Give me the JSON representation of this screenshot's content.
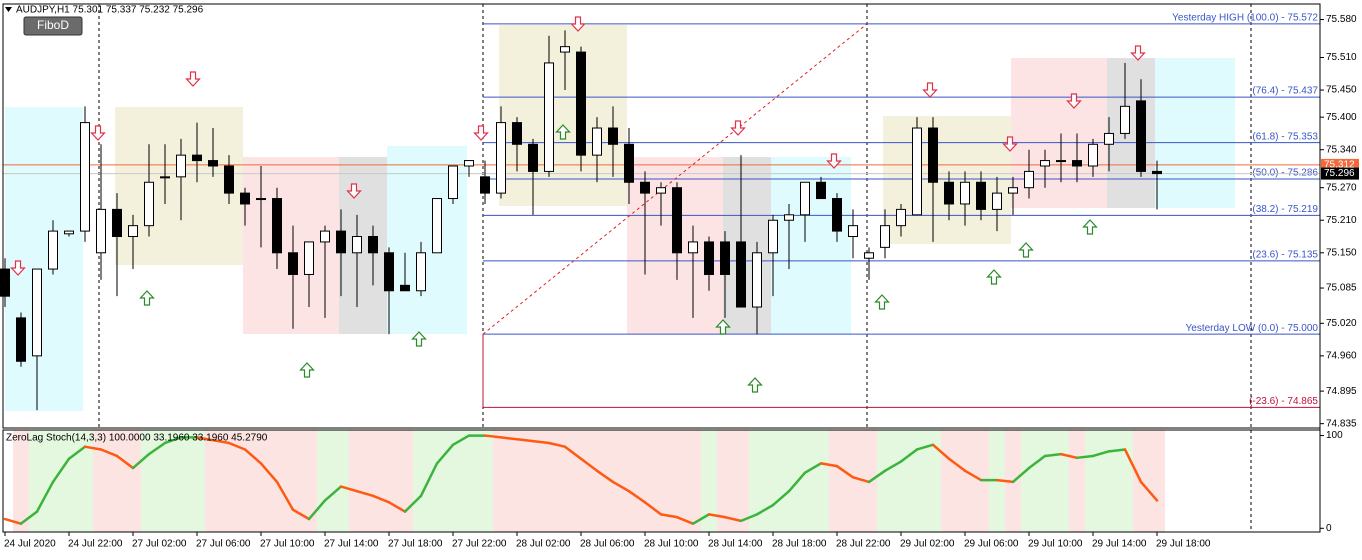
{
  "chart_data": [
    {
      "type": "candlestick",
      "title": "AUDJPY,H1  75.301 75.337 75.232 75.296",
      "button": "FiboD",
      "categories": [
        "24 Jul 2020",
        null,
        null,
        null,
        "24 Jul 22:00",
        null,
        null,
        null,
        "27 Jul 02:00",
        null,
        null,
        null,
        "27 Jul 06:00",
        null,
        null,
        null,
        "27 Jul 10:00",
        null,
        null,
        null,
        "27 Jul 14:00",
        null,
        null,
        null,
        "27 Jul 18:00",
        null,
        null,
        null,
        "27 Jul 22:00",
        null,
        null,
        null,
        "28 Jul 02:00",
        null,
        null,
        null,
        "28 Jul 06:00",
        null,
        null,
        null,
        "28 Jul 10:00",
        null,
        null,
        null,
        "28 Jul 14:00",
        null,
        null,
        null,
        "28 Jul 18:00",
        null,
        null,
        null,
        "28 Jul 22:00",
        null,
        null,
        null,
        "29 Jul 02:00",
        null,
        null,
        null,
        "29 Jul 06:00",
        null,
        null,
        null,
        "29 Jul 10:00",
        null,
        null,
        null,
        "29 Jul 14:00",
        null,
        null,
        null,
        "29 Jul 18:00"
      ],
      "open": [
        75.12,
        75.03,
        74.96,
        75.12,
        75.185,
        75.19,
        75.15,
        75.23,
        75.18,
        75.2,
        75.29,
        75.29,
        75.33,
        75.32,
        75.31,
        75.26,
        75.25,
        75.25,
        75.15,
        75.11,
        75.17,
        75.19,
        75.15,
        75.18,
        75.15,
        75.09,
        75.08,
        75.15,
        75.25,
        75.31,
        75.29,
        75.26,
        75.39,
        75.35,
        75.3,
        75.52,
        75.52,
        75.33,
        75.38,
        75.35,
        75.28,
        75.26,
        75.27,
        75.15,
        75.17,
        75.17,
        75.17,
        75.05,
        75.15,
        75.21,
        75.22,
        75.28,
        75.25,
        75.18,
        75.14,
        75.16,
        75.2,
        75.22,
        75.38,
        75.28,
        75.24,
        75.28,
        75.23,
        75.26,
        75.27,
        75.31,
        75.32,
        75.32,
        75.31,
        75.35,
        75.37,
        75.43,
        75.3
      ],
      "high": [
        75.14,
        75.04,
        75.12,
        75.21,
        75.19,
        75.42,
        75.35,
        75.26,
        75.22,
        75.35,
        75.35,
        75.36,
        75.39,
        75.38,
        75.33,
        75.27,
        75.31,
        75.27,
        75.2,
        75.17,
        75.2,
        75.23,
        75.22,
        75.2,
        75.16,
        75.15,
        75.17,
        75.25,
        75.31,
        75.32,
        75.32,
        75.42,
        75.4,
        75.36,
        75.55,
        75.56,
        75.53,
        75.4,
        75.42,
        75.38,
        75.3,
        75.28,
        75.28,
        75.2,
        75.18,
        75.19,
        75.33,
        75.17,
        75.22,
        75.24,
        75.28,
        75.29,
        75.26,
        75.23,
        75.16,
        75.23,
        75.24,
        75.4,
        75.4,
        75.3,
        75.3,
        75.3,
        75.29,
        75.29,
        75.34,
        75.34,
        75.37,
        75.37,
        75.36,
        75.4,
        75.5,
        75.47,
        75.32
      ],
      "low": [
        75.05,
        74.94,
        74.86,
        75.11,
        75.18,
        75.17,
        75.1,
        75.07,
        75.12,
        75.18,
        75.24,
        75.21,
        75.28,
        75.29,
        75.24,
        75.2,
        75.16,
        75.12,
        75.01,
        75.05,
        75.03,
        75.07,
        75.05,
        75.09,
        75.0,
        75.08,
        75.07,
        75.15,
        75.24,
        75.29,
        75.24,
        75.25,
        75.3,
        75.22,
        75.29,
        75.45,
        75.3,
        75.28,
        75.29,
        75.24,
        75.11,
        75.2,
        75.1,
        75.03,
        75.08,
        75.03,
        75.05,
        75.0,
        75.07,
        75.12,
        75.17,
        75.25,
        75.17,
        75.14,
        75.1,
        75.14,
        75.18,
        75.22,
        75.17,
        75.21,
        75.2,
        75.21,
        75.19,
        75.22,
        75.25,
        75.27,
        75.28,
        75.28,
        75.29,
        75.3,
        75.36,
        75.29,
        75.23
      ],
      "close": [
        75.07,
        74.95,
        75.12,
        75.19,
        75.19,
        75.39,
        75.23,
        75.18,
        75.2,
        75.28,
        75.29,
        75.33,
        75.32,
        75.31,
        75.26,
        75.24,
        75.25,
        75.15,
        75.11,
        75.17,
        75.19,
        75.15,
        75.18,
        75.15,
        75.08,
        75.08,
        75.15,
        75.25,
        75.31,
        75.32,
        75.26,
        75.39,
        75.35,
        75.3,
        75.5,
        75.53,
        75.33,
        75.38,
        75.35,
        75.28,
        75.26,
        75.27,
        75.15,
        75.17,
        75.11,
        75.11,
        75.05,
        75.15,
        75.21,
        75.22,
        75.28,
        75.25,
        75.19,
        75.2,
        75.15,
        75.2,
        75.23,
        75.38,
        75.28,
        75.24,
        75.28,
        75.23,
        75.26,
        75.27,
        75.3,
        75.32,
        75.32,
        75.31,
        75.35,
        75.37,
        75.42,
        75.3,
        75.296
      ],
      "ylim": [
        74.827,
        75.616
      ],
      "yticks": [
        {
          "value": 75.58,
          "label": "75.580"
        },
        {
          "value": 75.51,
          "label": "75.510"
        },
        {
          "value": 75.45,
          "label": "75.450"
        },
        {
          "value": 75.4,
          "label": "75.400"
        },
        {
          "value": 75.34,
          "label": "75.340"
        },
        {
          "value": 75.27,
          "label": "75.270"
        },
        {
          "value": 75.21,
          "label": "75.210"
        },
        {
          "value": 75.15,
          "label": "75.150"
        },
        {
          "value": 75.085,
          "label": "75.085"
        },
        {
          "value": 75.02,
          "label": "75.020"
        },
        {
          "value": 74.96,
          "label": "74.960"
        },
        {
          "value": 74.895,
          "label": "74.895"
        },
        {
          "value": 74.835,
          "label": "74.835"
        }
      ],
      "fibo_levels": [
        {
          "label": "Yesterday HIGH (100.0) - 75.572",
          "value": 75.572,
          "color": "#3a55c8"
        },
        {
          "label": "(76.4) - 75.437",
          "value": 75.437,
          "color": "#3a55c8"
        },
        {
          "label": "(61.8) - 75.353",
          "value": 75.353,
          "color": "#3a55c8"
        },
        {
          "label": "(50.0) - 75.286",
          "value": 75.286,
          "color": "#3a55c8"
        },
        {
          "label": "(38.2) - 75.219",
          "value": 75.219,
          "color": "#3a55c8"
        },
        {
          "label": "(23.6) - 75.135",
          "value": 75.135,
          "color": "#3a55c8"
        },
        {
          "label": "Yesterday LOW (0.0) - 75.000",
          "value": 75.0,
          "color": "#3a55c8"
        },
        {
          "label": "(-23.6) - 74.865",
          "value": 74.865,
          "color": "#c0103a"
        }
      ],
      "price_lines": [
        {
          "label": "75.312",
          "value": 75.312,
          "color": "#f06a3c"
        },
        {
          "label": "75.296",
          "value": 75.296,
          "color": "#000000"
        }
      ]
    },
    {
      "type": "stoch-line",
      "title": "ZeroLag Stoch(14,3,3) 100.0000 33.1960 33.1960 45.2790",
      "values": [
        10,
        5,
        18,
        50,
        75,
        88,
        85,
        78,
        65,
        80,
        92,
        98,
        98,
        95,
        92,
        85,
        70,
        50,
        20,
        10,
        30,
        45,
        40,
        35,
        28,
        18,
        35,
        70,
        90,
        100,
        100,
        98,
        96,
        94,
        92,
        88,
        75,
        62,
        50,
        40,
        28,
        15,
        12,
        5,
        15,
        12,
        8,
        15,
        25,
        40,
        60,
        70,
        67,
        55,
        50,
        62,
        72,
        85,
        90,
        75,
        62,
        52,
        52,
        50,
        65,
        78,
        80,
        76,
        78,
        83,
        85,
        50,
        30
      ],
      "up_color": "#3cb43c",
      "down_color": "#ff5a14",
      "ylim": [
        -4,
        106
      ],
      "yticks": [
        0,
        100
      ]
    }
  ]
}
